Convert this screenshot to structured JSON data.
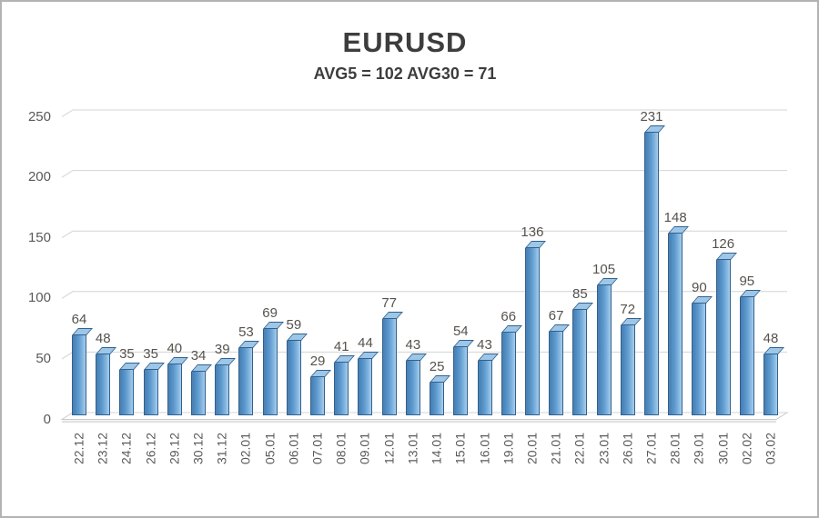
{
  "window": {
    "background": "#ffffff",
    "border_color": "#b3b3b3"
  },
  "chart_data": {
    "type": "bar",
    "style": "3d-column",
    "title": "EURUSD",
    "subtitle": "AVG5 = 102 AVG30 = 71",
    "categories": [
      "22.12",
      "23.12",
      "24.12",
      "26.12",
      "29.12",
      "30.12",
      "31.12",
      "02.01",
      "05.01",
      "06.01",
      "07.01",
      "08.01",
      "09.01",
      "12.01",
      "13.01",
      "14.01",
      "15.01",
      "16.01",
      "19.01",
      "20.01",
      "21.01",
      "22.01",
      "23.01",
      "26.01",
      "27.01",
      "28.01",
      "29.01",
      "30.01",
      "02.02",
      "03.02"
    ],
    "values": [
      64,
      48,
      35,
      35,
      40,
      34,
      39,
      53,
      69,
      59,
      29,
      41,
      44,
      77,
      43,
      25,
      54,
      43,
      66,
      136,
      67,
      85,
      105,
      72,
      231,
      148,
      90,
      126,
      95,
      48
    ],
    "xlabel": "",
    "ylabel": "",
    "ylim": [
      0,
      250
    ],
    "yticks": [
      0,
      50,
      100,
      150,
      200,
      250
    ],
    "grid": true,
    "legend": false,
    "data_labels": true,
    "avg5": 102,
    "avg30": 71,
    "colors": {
      "bar_fill": "#5b9bd5",
      "bar_fill_dark": "#4b86bb",
      "bar_fill_light": "#a7cdec",
      "bar_edge": "#31618f",
      "bar_top": "#9ec6e6",
      "gridline": "#d4d4d4",
      "floor_edge": "#c9c9c9",
      "floor_shadow": "#e2e2e2",
      "title_text": "#3d3d3d",
      "label_text": "#595959",
      "value_label_text": "#56524d"
    }
  }
}
